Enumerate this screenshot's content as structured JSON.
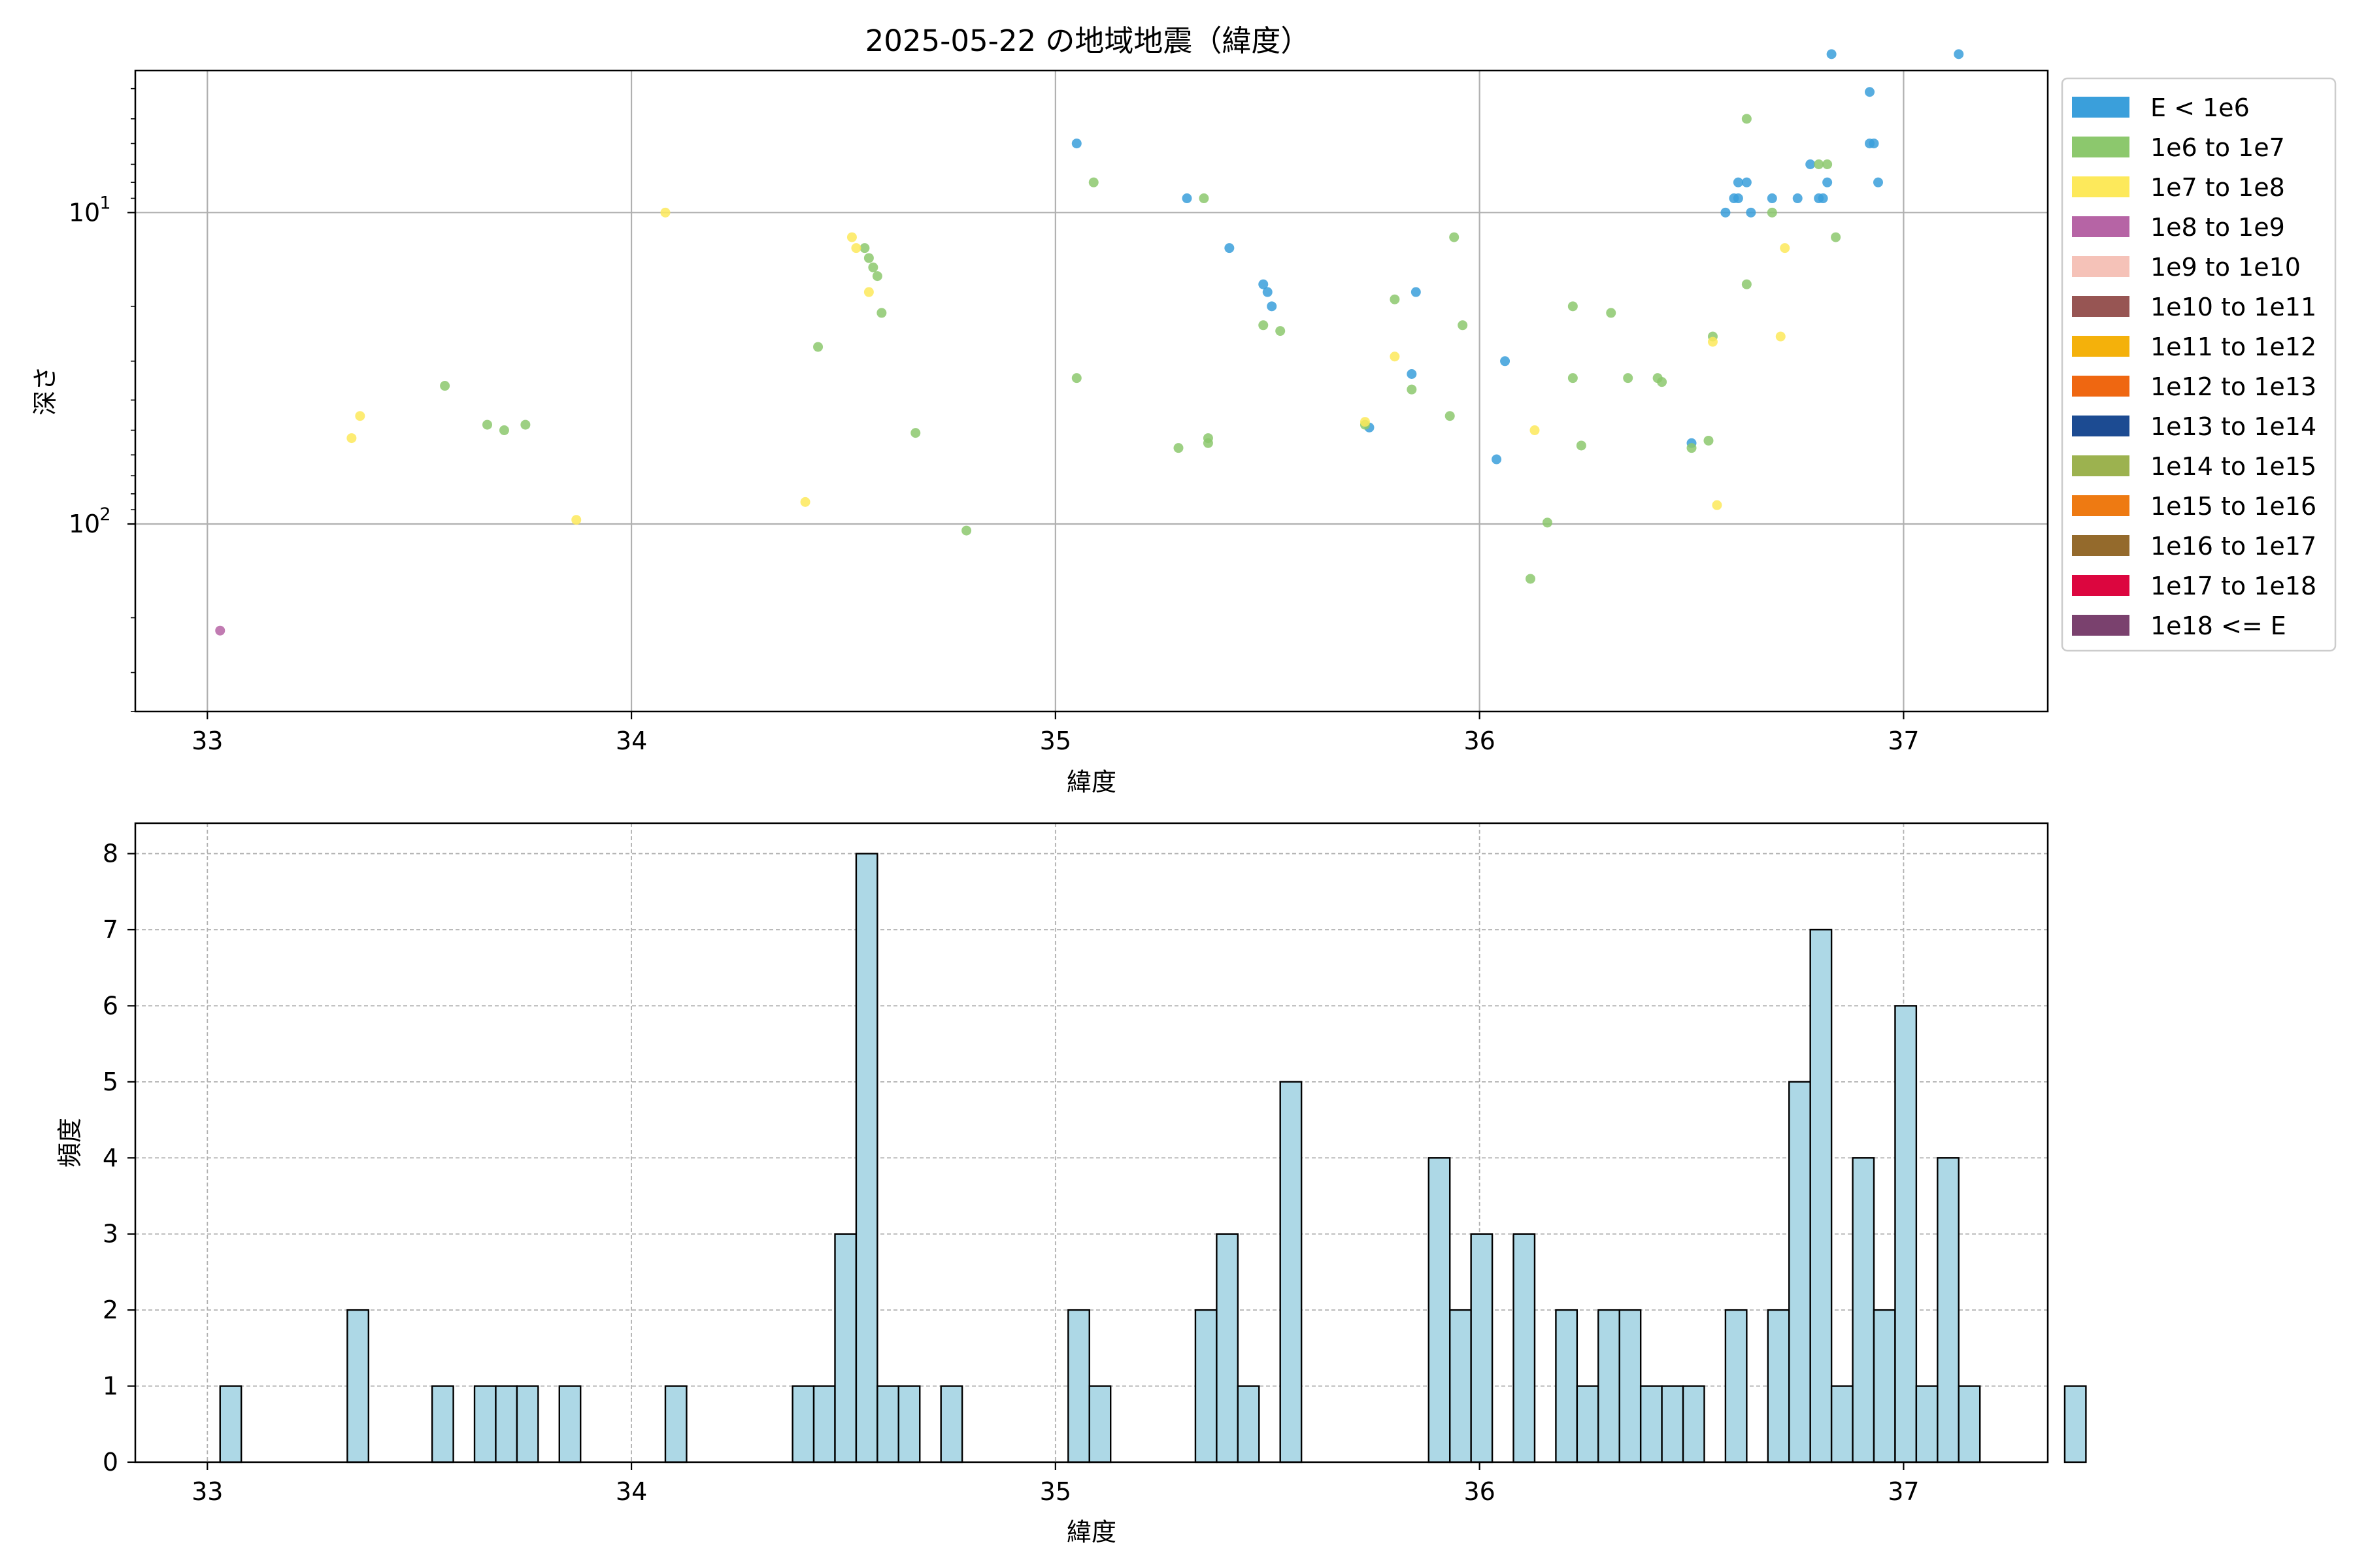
{
  "title": "2025-05-22 の地域地震（緯度）",
  "chart_data": [
    {
      "type": "scatter",
      "xlabel": "緯度",
      "ylabel": "深さ",
      "xlim": [
        32.83,
        37.34
      ],
      "ylim": [
        400,
        3.5
      ],
      "yscale": "log",
      "yaxis_inverted": true,
      "x_ticks": [
        "33",
        "34",
        "35",
        "36",
        "37"
      ],
      "y_ticks": [
        "10^1",
        "10^2"
      ],
      "grid": true,
      "legend_placement": "outside right",
      "legend": [
        {
          "label": "E < 1e6",
          "color": "#3a9fdb"
        },
        {
          "label": "1e6 to 1e7",
          "color": "#8cc86d"
        },
        {
          "label": "1e7 to 1e8",
          "color": "#fde95b"
        },
        {
          "label": "1e8 to 1e9",
          "color": "#b664a5"
        },
        {
          "label": "1e9 to 1e10",
          "color": "#f5c2b8"
        },
        {
          "label": "1e10 to 1e11",
          "color": "#975553"
        },
        {
          "label": "1e11 to 1e12",
          "color": "#f4b10b"
        },
        {
          "label": "1e12 to 1e13",
          "color": "#ef6711"
        },
        {
          "label": "1e13 to 1e14",
          "color": "#1c4b92"
        },
        {
          "label": "1e14 to 1e15",
          "color": "#9cb24f"
        },
        {
          "label": "1e15 to 1e16",
          "color": "#ee7a12"
        },
        {
          "label": "1e16 to 1e17",
          "color": "#946a2c"
        },
        {
          "label": "1e17 to 1e18",
          "color": "#dc063f"
        },
        {
          "label": "1e18 <= E",
          "color": "#7a416e"
        }
      ],
      "series": [
        {
          "name": "E < 1e6",
          "points": [
            [
              35.05,
              6
            ],
            [
              35.31,
              9
            ],
            [
              35.41,
              13
            ],
            [
              35.49,
              17
            ],
            [
              35.5,
              18
            ],
            [
              35.51,
              20
            ],
            [
              35.74,
              49
            ],
            [
              35.84,
              33
            ],
            [
              35.85,
              18
            ],
            [
              36.04,
              62
            ],
            [
              36.06,
              30
            ],
            [
              36.5,
              55
            ],
            [
              36.58,
              10
            ],
            [
              36.6,
              9
            ],
            [
              36.61,
              8
            ],
            [
              36.61,
              9
            ],
            [
              36.63,
              8
            ],
            [
              36.64,
              10
            ],
            [
              36.69,
              9
            ],
            [
              36.75,
              9
            ],
            [
              36.78,
              7
            ],
            [
              36.8,
              9
            ],
            [
              36.81,
              9
            ],
            [
              36.82,
              8
            ],
            [
              36.83,
              3.1
            ],
            [
              36.92,
              4.1
            ],
            [
              36.92,
              6
            ],
            [
              36.93,
              6
            ],
            [
              36.94,
              8
            ],
            [
              37.13,
              3.1
            ]
          ]
        },
        {
          "name": "1e6 to 1e7",
          "points": [
            [
              33.56,
              36
            ],
            [
              33.66,
              48
            ],
            [
              33.7,
              50
            ],
            [
              33.75,
              48
            ],
            [
              34.44,
              27
            ],
            [
              34.55,
              13
            ],
            [
              34.56,
              14
            ],
            [
              34.57,
              15
            ],
            [
              34.58,
              16
            ],
            [
              34.59,
              21
            ],
            [
              34.67,
              51
            ],
            [
              34.79,
              105
            ],
            [
              35.05,
              34
            ],
            [
              35.09,
              8
            ],
            [
              35.29,
              57
            ],
            [
              35.35,
              9
            ],
            [
              35.36,
              55
            ],
            [
              35.36,
              53
            ],
            [
              35.49,
              23
            ],
            [
              35.53,
              24
            ],
            [
              35.73,
              48
            ],
            [
              35.8,
              19
            ],
            [
              35.84,
              37
            ],
            [
              35.93,
              45
            ],
            [
              35.94,
              12
            ],
            [
              35.96,
              23
            ],
            [
              36.12,
              150
            ],
            [
              36.16,
              99
            ],
            [
              36.22,
              34
            ],
            [
              36.22,
              20
            ],
            [
              36.24,
              56
            ],
            [
              36.31,
              21
            ],
            [
              36.35,
              34
            ],
            [
              36.42,
              34
            ],
            [
              36.43,
              35
            ],
            [
              36.5,
              57
            ],
            [
              36.54,
              54
            ],
            [
              36.55,
              25
            ],
            [
              36.63,
              5
            ],
            [
              36.63,
              17
            ],
            [
              36.69,
              10
            ],
            [
              36.8,
              7
            ],
            [
              36.82,
              7
            ],
            [
              36.84,
              12
            ]
          ]
        },
        {
          "name": "1e7 to 1e8",
          "points": [
            [
              33.34,
              53
            ],
            [
              33.36,
              45
            ],
            [
              33.87,
              97
            ],
            [
              34.08,
              10
            ],
            [
              34.41,
              85
            ],
            [
              34.52,
              12
            ],
            [
              34.53,
              13
            ],
            [
              34.56,
              18
            ],
            [
              35.73,
              47
            ],
            [
              35.8,
              29
            ],
            [
              36.13,
              50
            ],
            [
              36.55,
              26
            ],
            [
              36.56,
              87
            ],
            [
              36.71,
              25
            ],
            [
              36.72,
              13
            ]
          ]
        },
        {
          "name": "1e8 to 1e9",
          "points": [
            [
              33.03,
              220
            ]
          ]
        }
      ]
    },
    {
      "type": "bar",
      "xlabel": "緯度",
      "ylabel": "頻度",
      "xlim": [
        32.83,
        37.34
      ],
      "ylim": [
        0,
        8.4
      ],
      "x_ticks": [
        "33",
        "34",
        "35",
        "36",
        "37"
      ],
      "y_ticks": [
        "0",
        "1",
        "2",
        "3",
        "4",
        "5",
        "6",
        "7",
        "8"
      ],
      "grid": true,
      "bar_color": "#add8e6",
      "bin_start": 33.03,
      "bin_width": 0.05,
      "values": [
        1,
        0,
        0,
        0,
        0,
        0,
        2,
        0,
        0,
        0,
        1,
        0,
        1,
        1,
        1,
        0,
        1,
        0,
        0,
        0,
        0,
        1,
        0,
        0,
        0,
        0,
        0,
        1,
        1,
        3,
        8,
        1,
        1,
        0,
        1,
        0,
        0,
        0,
        0,
        0,
        2,
        1,
        0,
        0,
        0,
        0,
        2,
        3,
        1,
        0,
        5,
        0,
        0,
        0,
        0,
        0,
        0,
        4,
        2,
        3,
        0,
        3,
        0,
        2,
        1,
        2,
        2,
        1,
        1,
        1,
        0,
        2,
        0,
        2,
        5,
        7,
        1,
        4,
        2,
        6,
        1,
        4,
        1,
        0,
        0,
        0,
        0,
        1
      ]
    }
  ]
}
